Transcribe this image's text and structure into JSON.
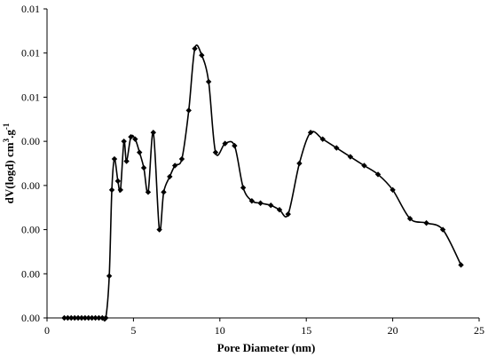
{
  "chart_data": {
    "type": "line",
    "xlabel": "Pore Diameter (nm)",
    "ylabel": "dV(logd) cm³.g⁻¹",
    "ylabel_main": "dV(logd) cm",
    "ylabel_sup1": "3",
    "ylabel_mid": ".g",
    "ylabel_sup2": "-1",
    "xlim": [
      0,
      25
    ],
    "ylim": [
      0,
      0.014
    ],
    "x_ticks": [
      0,
      5,
      10,
      15,
      20,
      25
    ],
    "x_tick_labels": [
      "0",
      "5",
      "10",
      "15",
      "20",
      "25"
    ],
    "y_ticks": [
      0,
      0.002,
      0.004,
      0.006,
      0.008,
      0.01,
      0.012,
      0.014
    ],
    "y_tick_labels": [
      "0.00",
      "0.00",
      "0.00",
      "0.00",
      "0.00",
      "0.01",
      "0.01",
      "0.01"
    ],
    "grid": false,
    "legend": false,
    "series": [
      {
        "color": "#000000",
        "marker": "diamond",
        "x": [
          1.0,
          1.2,
          1.4,
          1.6,
          1.8,
          2.0,
          2.2,
          2.4,
          2.6,
          2.8,
          3.0,
          3.2,
          3.4,
          3.6,
          3.75,
          3.9,
          4.1,
          4.25,
          4.45,
          4.6,
          4.85,
          5.1,
          5.35,
          5.6,
          5.85,
          6.15,
          6.5,
          6.75,
          7.1,
          7.4,
          7.8,
          8.2,
          8.55,
          8.95,
          9.35,
          9.75,
          10.3,
          10.85,
          11.35,
          11.85,
          12.35,
          12.95,
          13.45,
          13.95,
          14.6,
          15.25,
          15.95,
          16.75,
          17.55,
          18.35,
          19.15,
          20.0,
          21.0,
          21.95,
          22.9,
          23.95
        ],
        "y": [
          0.0,
          0.0,
          0.0,
          0.0,
          0.0,
          0.0,
          0.0,
          0.0,
          0.0,
          0.0,
          0.0,
          0.0,
          0.0,
          0.0019,
          0.0058,
          0.0072,
          0.0062,
          0.0058,
          0.008,
          0.0071,
          0.0082,
          0.0081,
          0.0075,
          0.0068,
          0.0057,
          0.0084,
          0.004,
          0.0057,
          0.0064,
          0.0069,
          0.0072,
          0.0094,
          0.0122,
          0.0119,
          0.0107,
          0.0075,
          0.0079,
          0.0078,
          0.0059,
          0.0053,
          0.0052,
          0.0051,
          0.0049,
          0.0047,
          0.007,
          0.0084,
          0.0081,
          0.0077,
          0.0073,
          0.0069,
          0.0065,
          0.0058,
          0.0045,
          0.0043,
          0.004,
          0.0024
        ]
      }
    ]
  }
}
